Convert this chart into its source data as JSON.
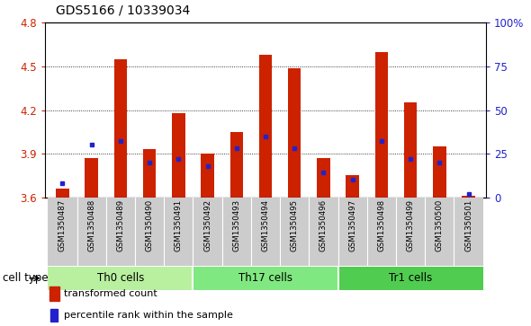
{
  "title": "GDS5166 / 10339034",
  "samples": [
    "GSM1350487",
    "GSM1350488",
    "GSM1350489",
    "GSM1350490",
    "GSM1350491",
    "GSM1350492",
    "GSM1350493",
    "GSM1350494",
    "GSM1350495",
    "GSM1350496",
    "GSM1350497",
    "GSM1350498",
    "GSM1350499",
    "GSM1350500",
    "GSM1350501"
  ],
  "red_values": [
    3.66,
    3.87,
    4.55,
    3.93,
    4.18,
    3.9,
    4.05,
    4.58,
    4.49,
    3.87,
    3.75,
    4.6,
    4.25,
    3.95,
    3.61
  ],
  "blue_values": [
    8,
    30,
    32,
    20,
    22,
    18,
    28,
    35,
    28,
    14,
    10,
    32,
    22,
    20,
    2
  ],
  "ylim_left": [
    3.6,
    4.8
  ],
  "ylim_right": [
    0,
    100
  ],
  "yticks_left": [
    3.6,
    3.9,
    4.2,
    4.5,
    4.8
  ],
  "yticks_right": [
    0,
    25,
    50,
    75,
    100
  ],
  "ytick_labels_left": [
    "3.6",
    "3.9",
    "4.2",
    "4.5",
    "4.8"
  ],
  "ytick_labels_right": [
    "0",
    "25",
    "50",
    "75",
    "100%"
  ],
  "cell_groups": [
    {
      "label": "Th0 cells",
      "start": 0,
      "end": 4,
      "color": "#b8f0a0"
    },
    {
      "label": "Th17 cells",
      "start": 5,
      "end": 9,
      "color": "#80e880"
    },
    {
      "label": "Tr1 cells",
      "start": 10,
      "end": 14,
      "color": "#50cc50"
    }
  ],
  "bar_color": "#cc2200",
  "marker_color": "#2222cc",
  "bar_width": 0.45,
  "background_xlabels": "#cccccc",
  "ylabel_left_color": "#cc2200",
  "ylabel_right_color": "#2222cc",
  "legend_items": [
    "transformed count",
    "percentile rank within the sample"
  ],
  "cell_type_label": "cell type"
}
